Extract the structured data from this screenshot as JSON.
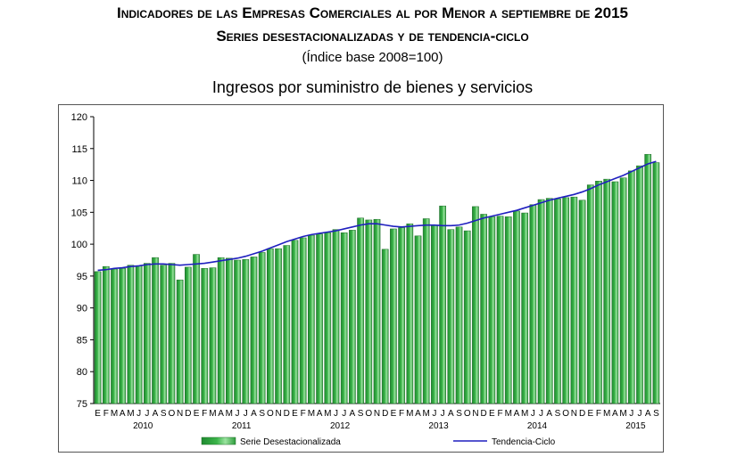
{
  "header": {
    "title": "Indicadores de las Empresas Comerciales al por Menor a septiembre de 2015",
    "subtitle": "Series desestacionalizadas y de tendencia-ciclo",
    "note": "(Índice base 2008=100)"
  },
  "colors": {
    "bar_fill": "#3cb54a",
    "bar_edge": "#1d6b27",
    "trend_line": "#1f1fbf"
  },
  "chart_data": {
    "type": "bar",
    "title": "Ingresos por suministro de bienes y servicios",
    "xlabel": "",
    "ylabel": "",
    "ylim": [
      75,
      120
    ],
    "yticks": [
      75,
      80,
      85,
      90,
      95,
      100,
      105,
      110,
      115,
      120
    ],
    "grid": false,
    "legend_position": "bottom",
    "month_labels": [
      "E",
      "F",
      "M",
      "A",
      "M",
      "J",
      "J",
      "A",
      "S",
      "O",
      "N",
      "D",
      "E",
      "F",
      "M",
      "A",
      "M",
      "J",
      "J",
      "A",
      "S",
      "O",
      "N",
      "D",
      "E",
      "F",
      "M",
      "A",
      "M",
      "J",
      "J",
      "A",
      "S",
      "O",
      "N",
      "D",
      "E",
      "F",
      "M",
      "A",
      "M",
      "J",
      "J",
      "A",
      "S",
      "O",
      "N",
      "D",
      "E",
      "F",
      "M",
      "A",
      "M",
      "J",
      "J",
      "A",
      "S",
      "O",
      "N",
      "D",
      "E",
      "F",
      "M",
      "A",
      "M",
      "J",
      "J",
      "A",
      "S"
    ],
    "year_labels": [
      {
        "label": "2010",
        "start_index": 0
      },
      {
        "label": "2011",
        "start_index": 12
      },
      {
        "label": "2012",
        "start_index": 24
      },
      {
        "label": "2013",
        "start_index": 36
      },
      {
        "label": "2014",
        "start_index": 48
      },
      {
        "label": "2015",
        "start_index": 60
      }
    ],
    "series": [
      {
        "name": "Serie Desestacionalizada",
        "kind": "bar",
        "values": [
          95.7,
          96.5,
          96.1,
          96.2,
          96.7,
          96.6,
          97.0,
          97.9,
          96.7,
          97.0,
          94.4,
          96.4,
          98.4,
          96.2,
          96.3,
          97.9,
          97.8,
          97.5,
          97.6,
          98.0,
          98.7,
          99.3,
          99.3,
          99.8,
          100.6,
          101.0,
          101.4,
          101.6,
          101.8,
          102.3,
          101.8,
          102.2,
          104.1,
          103.8,
          103.9,
          99.2,
          102.4,
          102.6,
          103.2,
          101.3,
          104.0,
          103.0,
          106.0,
          102.3,
          102.7,
          102.1,
          105.9,
          104.7,
          104.3,
          104.4,
          104.3,
          105.2,
          104.9,
          106.2,
          107.0,
          107.2,
          107.1,
          107.3,
          107.4,
          106.9,
          109.3,
          109.9,
          110.2,
          109.8,
          110.4,
          111.5,
          112.3,
          114.1,
          112.8
        ]
      },
      {
        "name": "Tendencia-Ciclo",
        "kind": "line",
        "values": [
          95.9,
          96.0,
          96.2,
          96.3,
          96.5,
          96.6,
          96.8,
          96.9,
          96.9,
          96.8,
          96.7,
          96.8,
          96.9,
          97.0,
          97.2,
          97.4,
          97.6,
          97.8,
          98.1,
          98.5,
          98.9,
          99.4,
          99.9,
          100.4,
          100.8,
          101.2,
          101.5,
          101.7,
          101.9,
          102.1,
          102.4,
          102.7,
          103.0,
          103.2,
          103.2,
          103.0,
          102.8,
          102.7,
          102.8,
          102.9,
          103.0,
          103.0,
          102.9,
          102.9,
          103.0,
          103.3,
          103.7,
          104.1,
          104.4,
          104.7,
          105.0,
          105.3,
          105.7,
          106.1,
          106.5,
          106.9,
          107.2,
          107.5,
          107.8,
          108.2,
          108.7,
          109.3,
          109.8,
          110.3,
          110.8,
          111.4,
          112.0,
          112.6,
          113.0
        ]
      }
    ]
  }
}
